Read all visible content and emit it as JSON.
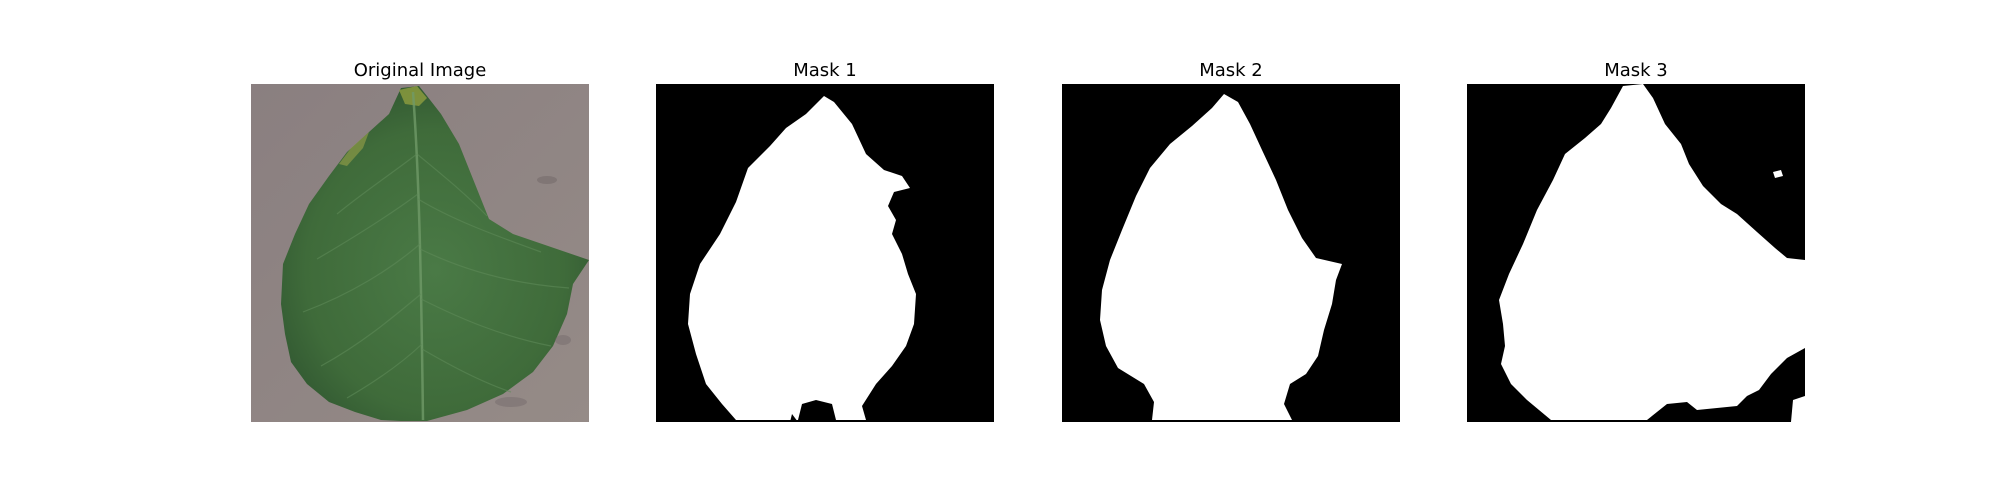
{
  "figure": {
    "panels": [
      {
        "title": "Original Image",
        "kind": "photo"
      },
      {
        "title": "Mask 1",
        "kind": "mask"
      },
      {
        "title": "Mask 2",
        "kind": "mask"
      },
      {
        "title": "Mask 3",
        "kind": "mask"
      }
    ]
  },
  "colors": {
    "background": "#ffffff",
    "mask_background": "#000000",
    "mask_foreground": "#ffffff",
    "leaf_green": "#3f6b3a",
    "leaf_dark": "#2f5530",
    "surface_gray": "#8c8281"
  }
}
